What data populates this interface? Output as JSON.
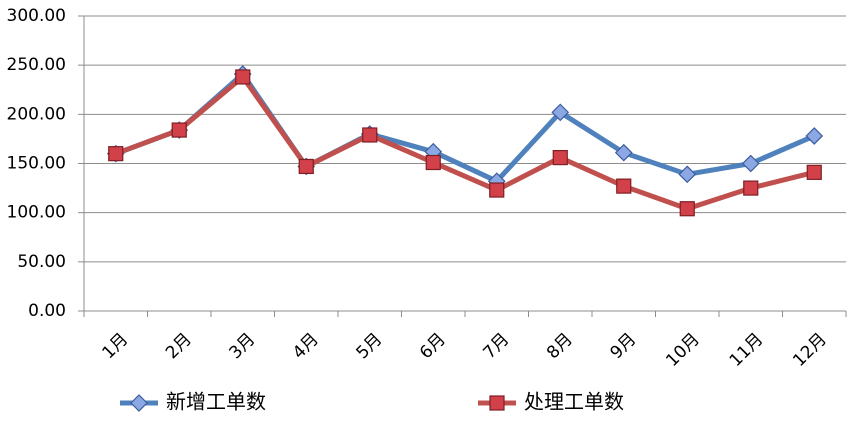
{
  "chart_data": {
    "type": "line",
    "categories": [
      "1月",
      "2月",
      "3月",
      "4月",
      "5月",
      "6月",
      "7月",
      "8月",
      "9月",
      "10月",
      "11月",
      "12月"
    ],
    "series": [
      {
        "name": "新增工单数",
        "values": [
          160,
          184,
          241,
          147,
          180,
          162,
          132,
          202,
          161,
          139,
          150,
          178
        ],
        "color": "#4F81BD",
        "marker": "diamond",
        "marker_fill": "#8CA8E4",
        "marker_stroke": "#3B5B9E"
      },
      {
        "name": "处理工单数",
        "values": [
          160,
          184,
          238,
          147,
          179,
          151,
          123,
          156,
          127,
          104,
          125,
          141
        ],
        "color": "#C0504D",
        "marker": "square",
        "marker_fill": "#D2404A",
        "marker_stroke": "#7E1F24"
      }
    ],
    "ylim": [
      0,
      300
    ],
    "yticks": [
      0,
      50,
      100,
      150,
      200,
      250,
      300
    ],
    "ytick_labels": [
      "0.00",
      "50.00",
      "100.00",
      "150.00",
      "200.00",
      "250.00",
      "300.00"
    ],
    "grid": true,
    "legend": "bottom"
  }
}
